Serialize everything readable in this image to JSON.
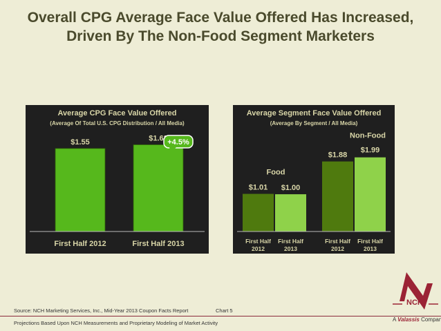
{
  "title_line1": "Overall CPG Average Face Value Offered Has Increased,",
  "title_line2": "Driven By The Non-Food Segment Marketers",
  "colors": {
    "background": "#eeedd6",
    "panel": "#1f1f1f",
    "dark_green": "#4f7a0e",
    "light_green": "#8fd24a",
    "bright_green": "#56b81c",
    "heading": "#d9d6a8",
    "accent": "#9b2335"
  },
  "chart_data": [
    {
      "type": "bar",
      "title": "Average CPG Face Value Offered",
      "subtitle": "(Average Of Total U.S. CPG Distribution / All Media)",
      "categories": [
        "First Half 2012",
        "First Half 2013"
      ],
      "values": [
        1.55,
        1.62
      ],
      "data_labels": [
        "$1.55",
        "$1.62"
      ],
      "annotation": "+4.5%",
      "ylim": [
        0,
        2.0
      ]
    },
    {
      "type": "bar",
      "title": "Average Segment Face Value Offered",
      "subtitle": "(Average By Segment / All Media)",
      "groups": [
        {
          "name": "Food",
          "categories": [
            [
              "First Half",
              "2012"
            ],
            [
              "First Half",
              "2013"
            ]
          ],
          "values": [
            1.01,
            1.0
          ],
          "data_labels": [
            "$1.01",
            "$1.00"
          ]
        },
        {
          "name": "Non-Food",
          "categories": [
            [
              "First Half",
              "2012"
            ],
            [
              "First Half",
              "2013"
            ]
          ],
          "values": [
            1.88,
            1.99
          ],
          "data_labels": [
            "$1.88",
            "$1.99"
          ]
        }
      ],
      "ylim": [
        0,
        2.3
      ]
    }
  ],
  "footer": {
    "source": "Source: NCH Marketing Services, Inc., Mid-Year 2013 Coupon Facts Report",
    "chart_label": "Chart 5",
    "note": "Projections Based Upon NCH Measurements and Proprietary Modeling of Market Activity"
  },
  "logo": {
    "name": "NCH",
    "registered": "®",
    "tagline_prefix": "A ",
    "tagline_brand": "Valassis",
    "tagline_suffix": " Company"
  }
}
